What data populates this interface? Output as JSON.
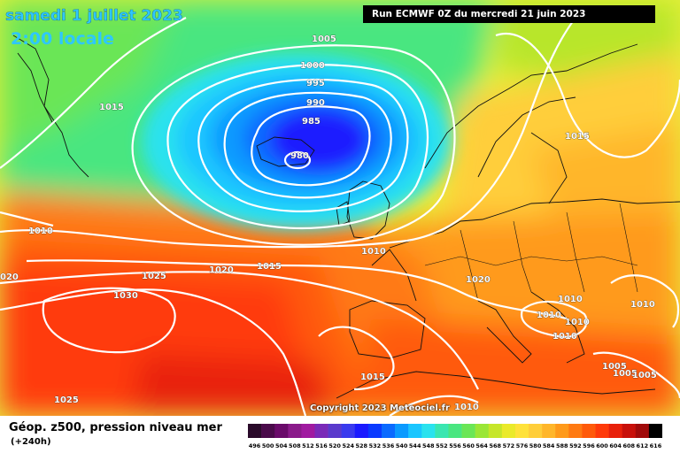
{
  "header": {
    "date": "samedi 1 juillet 2023",
    "local_time": "2:00 locale",
    "run_info": "Run ECMWF 0Z du mercredi 21 juin 2023"
  },
  "footer": {
    "parameter": "Géop. z500, pression niveau mer",
    "lead_time": "(+240h)"
  },
  "copyright": "Copyright 2023 Meteociel.fr",
  "isobar_labels": [
    {
      "name": "isobar-label-1005-north",
      "text": "1005"
    },
    {
      "name": "isobar-label-1000",
      "text": "1000"
    },
    {
      "name": "isobar-label-995",
      "text": "995"
    },
    {
      "name": "isobar-label-990",
      "text": "990"
    },
    {
      "name": "isobar-label-985",
      "text": "985"
    },
    {
      "name": "isobar-label-980",
      "text": "980"
    },
    {
      "name": "isobar-label-1015-greenland",
      "text": "1015"
    },
    {
      "name": "isobar-label-1015-scandinavia",
      "text": "1015"
    },
    {
      "name": "isobar-label-1010-west",
      "text": "1010"
    },
    {
      "name": "isobar-label-1020-left-edge",
      "text": "020"
    },
    {
      "name": "isobar-label-1025-azores",
      "text": "1025"
    },
    {
      "name": "isobar-label-1020-atlantic",
      "text": "1020"
    },
    {
      "name": "isobar-label-1015-atlantic",
      "text": "1015"
    },
    {
      "name": "isobar-label-1010-britain",
      "text": "1010"
    },
    {
      "name": "isobar-label-1030",
      "text": "1030"
    },
    {
      "name": "isobar-label-1020-europe",
      "text": "1020"
    },
    {
      "name": "isobar-label-1010-balkans-1",
      "text": "1010"
    },
    {
      "name": "isobar-label-1010-balkans-2",
      "text": "1010"
    },
    {
      "name": "isobar-label-1010-italy",
      "text": "1010"
    },
    {
      "name": "isobar-label-1010-adriatic",
      "text": "1010"
    },
    {
      "name": "isobar-label-1010-mediterranean",
      "text": "1010"
    },
    {
      "name": "isobar-label-1005-east-1",
      "text": "1005"
    },
    {
      "name": "isobar-label-1005-east-2",
      "text": "1005"
    },
    {
      "name": "isobar-label-1005-east-3",
      "text": "1005"
    },
    {
      "name": "isobar-label-1015-iberia",
      "text": "1015"
    },
    {
      "name": "isobar-label-1025-south",
      "text": "1025"
    },
    {
      "name": "isobar-label-1010-africa",
      "text": "1010"
    }
  ],
  "legend": {
    "values": [
      "496",
      "500",
      "504",
      "508",
      "512",
      "516",
      "520",
      "524",
      "528",
      "532",
      "536",
      "540",
      "544",
      "548",
      "552",
      "556",
      "560",
      "564",
      "568",
      "572",
      "576",
      "580",
      "584",
      "588",
      "592",
      "596",
      "600",
      "604",
      "608",
      "612",
      "616"
    ],
    "colors": [
      "#2a0a2a",
      "#4a0a4a",
      "#6a0a6a",
      "#8a1a8a",
      "#a01aa0",
      "#7a2ab8",
      "#5a3acc",
      "#3a3aee",
      "#1a1aff",
      "#0a3aff",
      "#0a6aff",
      "#0a9aff",
      "#1ac6ff",
      "#2ae2ee",
      "#3ae6b0",
      "#4ae680",
      "#6ae656",
      "#9ae636",
      "#c6e62a",
      "#eaea2a",
      "#ffe23a",
      "#ffce3a",
      "#ffb62a",
      "#ff9a1a",
      "#ff7a12",
      "#ff5a0a",
      "#ff3a0a",
      "#e8200a",
      "#c8100a",
      "#a00a0a",
      "#000000"
    ]
  }
}
